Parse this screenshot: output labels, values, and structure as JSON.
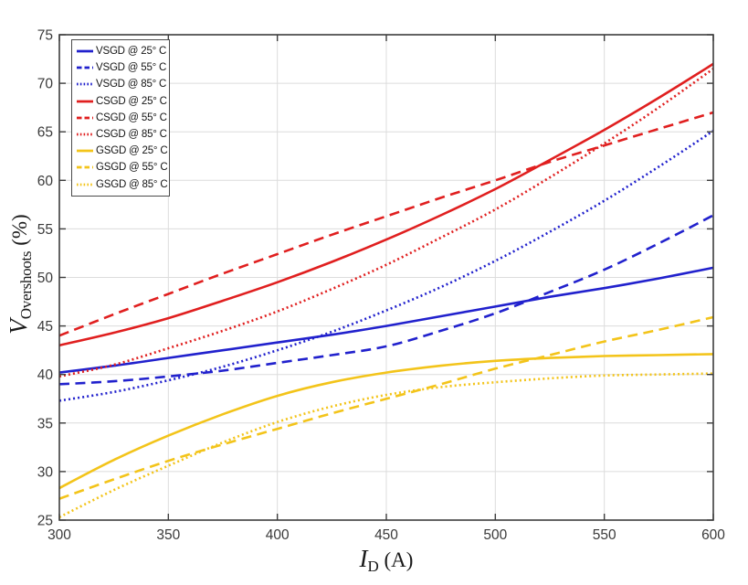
{
  "figure": {
    "background": "#ffffff",
    "xlabel": {
      "main": "I",
      "sub": "D",
      "unit": "(A)"
    },
    "ylabel": {
      "main": "V",
      "sub": "Overshoots",
      "unit": "(%)"
    }
  },
  "style": {
    "grid_color": "#dcdcdc",
    "axis_color": "#3d3d3d",
    "tick_label_color": "#3a3a3a",
    "colors": {
      "vsgd_blue": "#2121cd",
      "csgd_red": "#e01f1f",
      "gsgd_yellow": "#f3c41a"
    }
  },
  "chart_data": {
    "type": "line",
    "title": "",
    "xlabel": "I_D (A)",
    "ylabel": "V_Overshoots (%)",
    "xlim": [
      300,
      600
    ],
    "ylim": [
      25,
      75
    ],
    "xticks": [
      300,
      350,
      400,
      450,
      500,
      550,
      600
    ],
    "yticks": [
      25,
      30,
      35,
      40,
      45,
      50,
      55,
      60,
      65,
      70,
      75
    ],
    "grid": true,
    "legend_position": "top-left",
    "x": [
      300,
      325,
      350,
      375,
      400,
      425,
      450,
      475,
      500,
      525,
      550,
      575,
      600
    ],
    "series": [
      {
        "name": "VSGD @ 25° C",
        "color": "#2121cd",
        "style": "solid",
        "values": [
          40.2,
          40.9,
          41.7,
          42.5,
          43.3,
          44.1,
          45.0,
          46.0,
          47.0,
          48.0,
          48.9,
          49.9,
          51.0
        ]
      },
      {
        "name": "VSGD @ 55° C",
        "color": "#2121cd",
        "style": "dashed",
        "values": [
          39.0,
          39.3,
          39.8,
          40.4,
          41.2,
          42.0,
          42.9,
          44.5,
          46.3,
          48.5,
          50.8,
          53.5,
          56.4
        ]
      },
      {
        "name": "VSGD @ 85° C",
        "color": "#2121cd",
        "style": "dotted",
        "values": [
          37.3,
          38.2,
          39.4,
          40.8,
          42.5,
          44.4,
          46.6,
          49.0,
          51.7,
          54.7,
          57.9,
          61.4,
          65.1
        ]
      },
      {
        "name": "CSGD @ 25° C",
        "color": "#e01f1f",
        "style": "solid",
        "values": [
          43.0,
          44.3,
          45.8,
          47.6,
          49.5,
          51.6,
          53.9,
          56.4,
          59.1,
          62.1,
          65.2,
          68.5,
          72.0
        ]
      },
      {
        "name": "CSGD @ 55° C",
        "color": "#e01f1f",
        "style": "dashed",
        "values": [
          44.0,
          46.2,
          48.3,
          50.4,
          52.4,
          54.4,
          56.3,
          58.2,
          60.0,
          61.9,
          63.6,
          65.3,
          67.0
        ]
      },
      {
        "name": "CSGD @ 85° C",
        "color": "#e01f1f",
        "style": "dotted",
        "values": [
          39.8,
          41.0,
          42.7,
          44.5,
          46.5,
          48.8,
          51.3,
          54.1,
          57.0,
          60.3,
          63.8,
          67.5,
          71.5
        ]
      },
      {
        "name": "GSGD @ 25° C",
        "color": "#f3c41a",
        "style": "solid",
        "values": [
          28.3,
          31.2,
          33.7,
          35.9,
          37.8,
          39.2,
          40.2,
          40.9,
          41.4,
          41.7,
          41.9,
          42.0,
          42.1
        ]
      },
      {
        "name": "GSGD @ 55° C",
        "color": "#f3c41a",
        "style": "dashed",
        "values": [
          27.2,
          29.2,
          31.1,
          32.8,
          34.4,
          36.0,
          37.5,
          39.0,
          40.6,
          42.0,
          43.4,
          44.6,
          45.9
        ]
      },
      {
        "name": "GSGD @ 85° C",
        "color": "#f3c41a",
        "style": "dotted",
        "values": [
          25.3,
          28.1,
          30.6,
          33.0,
          35.1,
          36.7,
          37.9,
          38.7,
          39.2,
          39.6,
          39.9,
          40.0,
          40.1
        ]
      }
    ]
  }
}
